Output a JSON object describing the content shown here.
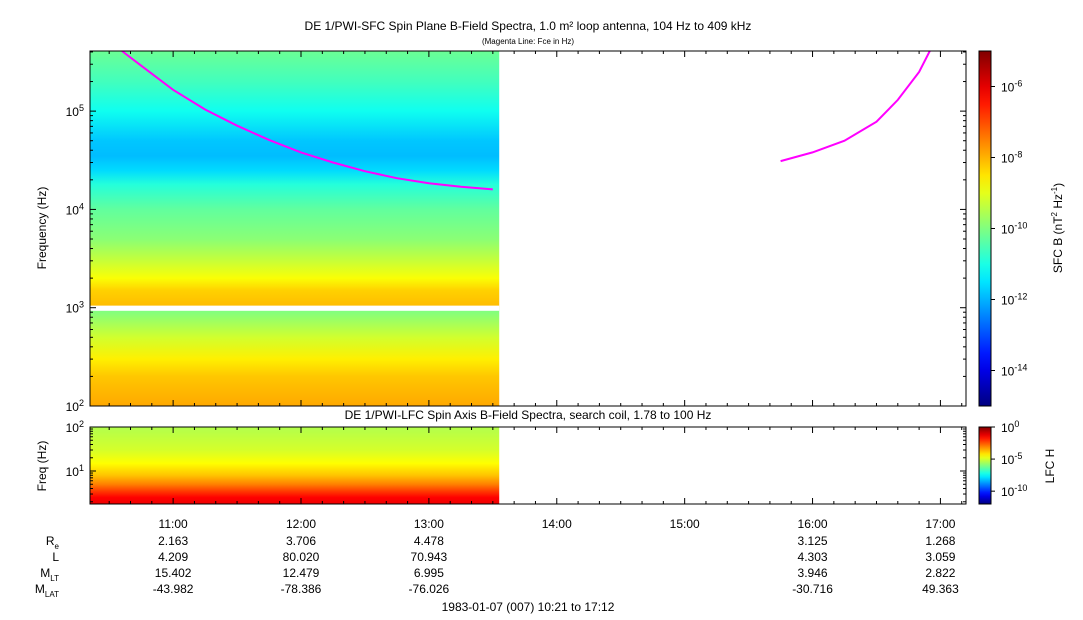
{
  "chart_data": [
    {
      "type": "heatmap",
      "title": "DE 1/PWI-SFC  Spin Plane B-Field Spectra, 1.0 m² loop antenna, 104 Hz to 409 kHz",
      "subtitle": "(Magenta Line: Fce in Hz)",
      "ylabel": "Frequency (Hz)",
      "yscale": "log",
      "ylim": [
        100,
        409000
      ],
      "ytick_values": [
        100,
        1000,
        10000,
        100000
      ],
      "ytick_labels": [
        {
          "base": "10",
          "exp": "2"
        },
        {
          "base": "10",
          "exp": "3"
        },
        {
          "base": "10",
          "exp": "4"
        },
        {
          "base": "10",
          "exp": "5"
        }
      ],
      "data_time_range": [
        "10:21",
        "13:33"
      ],
      "data_gap_hz": [
        930,
        1050
      ],
      "colorbar": {
        "label_parts": [
          "SFC B (nT",
          "2",
          " Hz",
          "-1",
          ")"
        ],
        "scale": "log",
        "range": [
          1e-15,
          1e-05
        ],
        "tick_values": [
          1e-06,
          1e-08,
          1e-10,
          1e-12,
          1e-14
        ],
        "tick_labels": [
          {
            "base": "10",
            "exp": "-6"
          },
          {
            "base": "10",
            "exp": "-8"
          },
          {
            "base": "10",
            "exp": "-10"
          },
          {
            "base": "10",
            "exp": "-12"
          },
          {
            "base": "10",
            "exp": "-14"
          }
        ]
      },
      "spectrum_profile": [
        {
          "hz": 409000,
          "log_intensity": -10.2
        },
        {
          "hz": 200000,
          "log_intensity": -10.6
        },
        {
          "hz": 100000,
          "log_intensity": -11.1
        },
        {
          "hz": 50000,
          "log_intensity": -11.8
        },
        {
          "hz": 35000,
          "log_intensity": -11.9
        },
        {
          "hz": 25000,
          "log_intensity": -11.6
        },
        {
          "hz": 18000,
          "log_intensity": -10.9
        },
        {
          "hz": 10000,
          "log_intensity": -10.3
        },
        {
          "hz": 5000,
          "log_intensity": -9.9
        },
        {
          "hz": 3000,
          "log_intensity": -9.3
        },
        {
          "hz": 2000,
          "log_intensity": -8.8
        },
        {
          "hz": 1500,
          "log_intensity": -8.3
        },
        {
          "hz": 1050,
          "log_intensity": -8.1
        },
        {
          "hz": 930,
          "log_intensity": -10.0
        },
        {
          "hz": 500,
          "log_intensity": -9.2
        },
        {
          "hz": 300,
          "log_intensity": -8.6
        },
        {
          "hz": 200,
          "log_intensity": -8.2
        },
        {
          "hz": 100,
          "log_intensity": -7.9
        }
      ],
      "fce_line": {
        "color": "#ff00ff",
        "segments": [
          {
            "time": [
              "10:36",
              "10:45",
              "11:00",
              "11:15",
              "11:30",
              "11:45",
              "12:00",
              "12:15",
              "12:30",
              "12:45",
              "13:00",
              "13:15",
              "13:30"
            ],
            "hz": [
              409000,
              290000,
              165000,
              104000,
              71000,
              51000,
              38000,
              30000,
              24500,
              20800,
              18500,
              17000,
              16000
            ]
          },
          {
            "time": [
              "15:45",
              "16:00",
              "16:15",
              "16:30",
              "16:40",
              "16:50",
              "16:55"
            ],
            "hz": [
              31000,
              38000,
              50000,
              78000,
              130000,
              250000,
              409000
            ]
          }
        ]
      }
    },
    {
      "type": "heatmap",
      "title": "DE 1/PWI-LFC  Spin Axis B-Field Spectra, search coil, 1.78 to 100 Hz",
      "ylabel": "Freq (Hz)",
      "yscale": "log",
      "ylim": [
        1.78,
        100
      ],
      "ytick_values": [
        10,
        100
      ],
      "ytick_labels": [
        {
          "base": "10",
          "exp": "1"
        },
        {
          "base": "10",
          "exp": "2"
        }
      ],
      "data_time_range": [
        "10:21",
        "13:33"
      ],
      "colorbar": {
        "label": "LFC H",
        "scale": "log",
        "range": [
          1e-12,
          1
        ],
        "tick_values": [
          1,
          1e-05,
          1e-10
        ],
        "tick_labels": [
          {
            "base": "10",
            "exp": "0"
          },
          {
            "base": "10",
            "exp": "-5"
          },
          {
            "base": "10",
            "exp": "-10"
          }
        ]
      },
      "spectrum_profile": [
        {
          "hz": 100,
          "log_intensity": -5.4
        },
        {
          "hz": 30,
          "log_intensity": -5.0
        },
        {
          "hz": 15,
          "log_intensity": -4.5
        },
        {
          "hz": 8,
          "log_intensity": -3.8
        },
        {
          "hz": 5,
          "log_intensity": -3.0
        },
        {
          "hz": 3.5,
          "log_intensity": -2.2
        },
        {
          "hz": 2.5,
          "log_intensity": -1.5
        },
        {
          "hz": 1.78,
          "log_intensity": -1.3
        }
      ]
    }
  ],
  "time_axis": {
    "range": [
      "10:21",
      "17:12"
    ],
    "ticks": [
      "11:00",
      "12:00",
      "13:00",
      "14:00",
      "15:00",
      "16:00",
      "17:00"
    ]
  },
  "ephemeris": {
    "rows": [
      {
        "label": "R",
        "sub": "e",
        "values": [
          "2.163",
          "3.706",
          "4.478",
          "",
          "",
          "3.125",
          "1.268"
        ]
      },
      {
        "label": "L",
        "sub": "",
        "values": [
          "4.209",
          "80.020",
          "70.943",
          "",
          "",
          "4.303",
          "3.059"
        ]
      },
      {
        "label": "M",
        "sub": "LT",
        "values": [
          "15.402",
          "12.479",
          "6.995",
          "",
          "",
          "3.946",
          "2.822"
        ]
      },
      {
        "label": "M",
        "sub": "LAT",
        "values": [
          "-43.982",
          "-78.386",
          "-76.026",
          "",
          "",
          "-30.716",
          "49.363"
        ]
      }
    ]
  },
  "footer": "1983-01-07 (007) 10:21 to 17:12"
}
